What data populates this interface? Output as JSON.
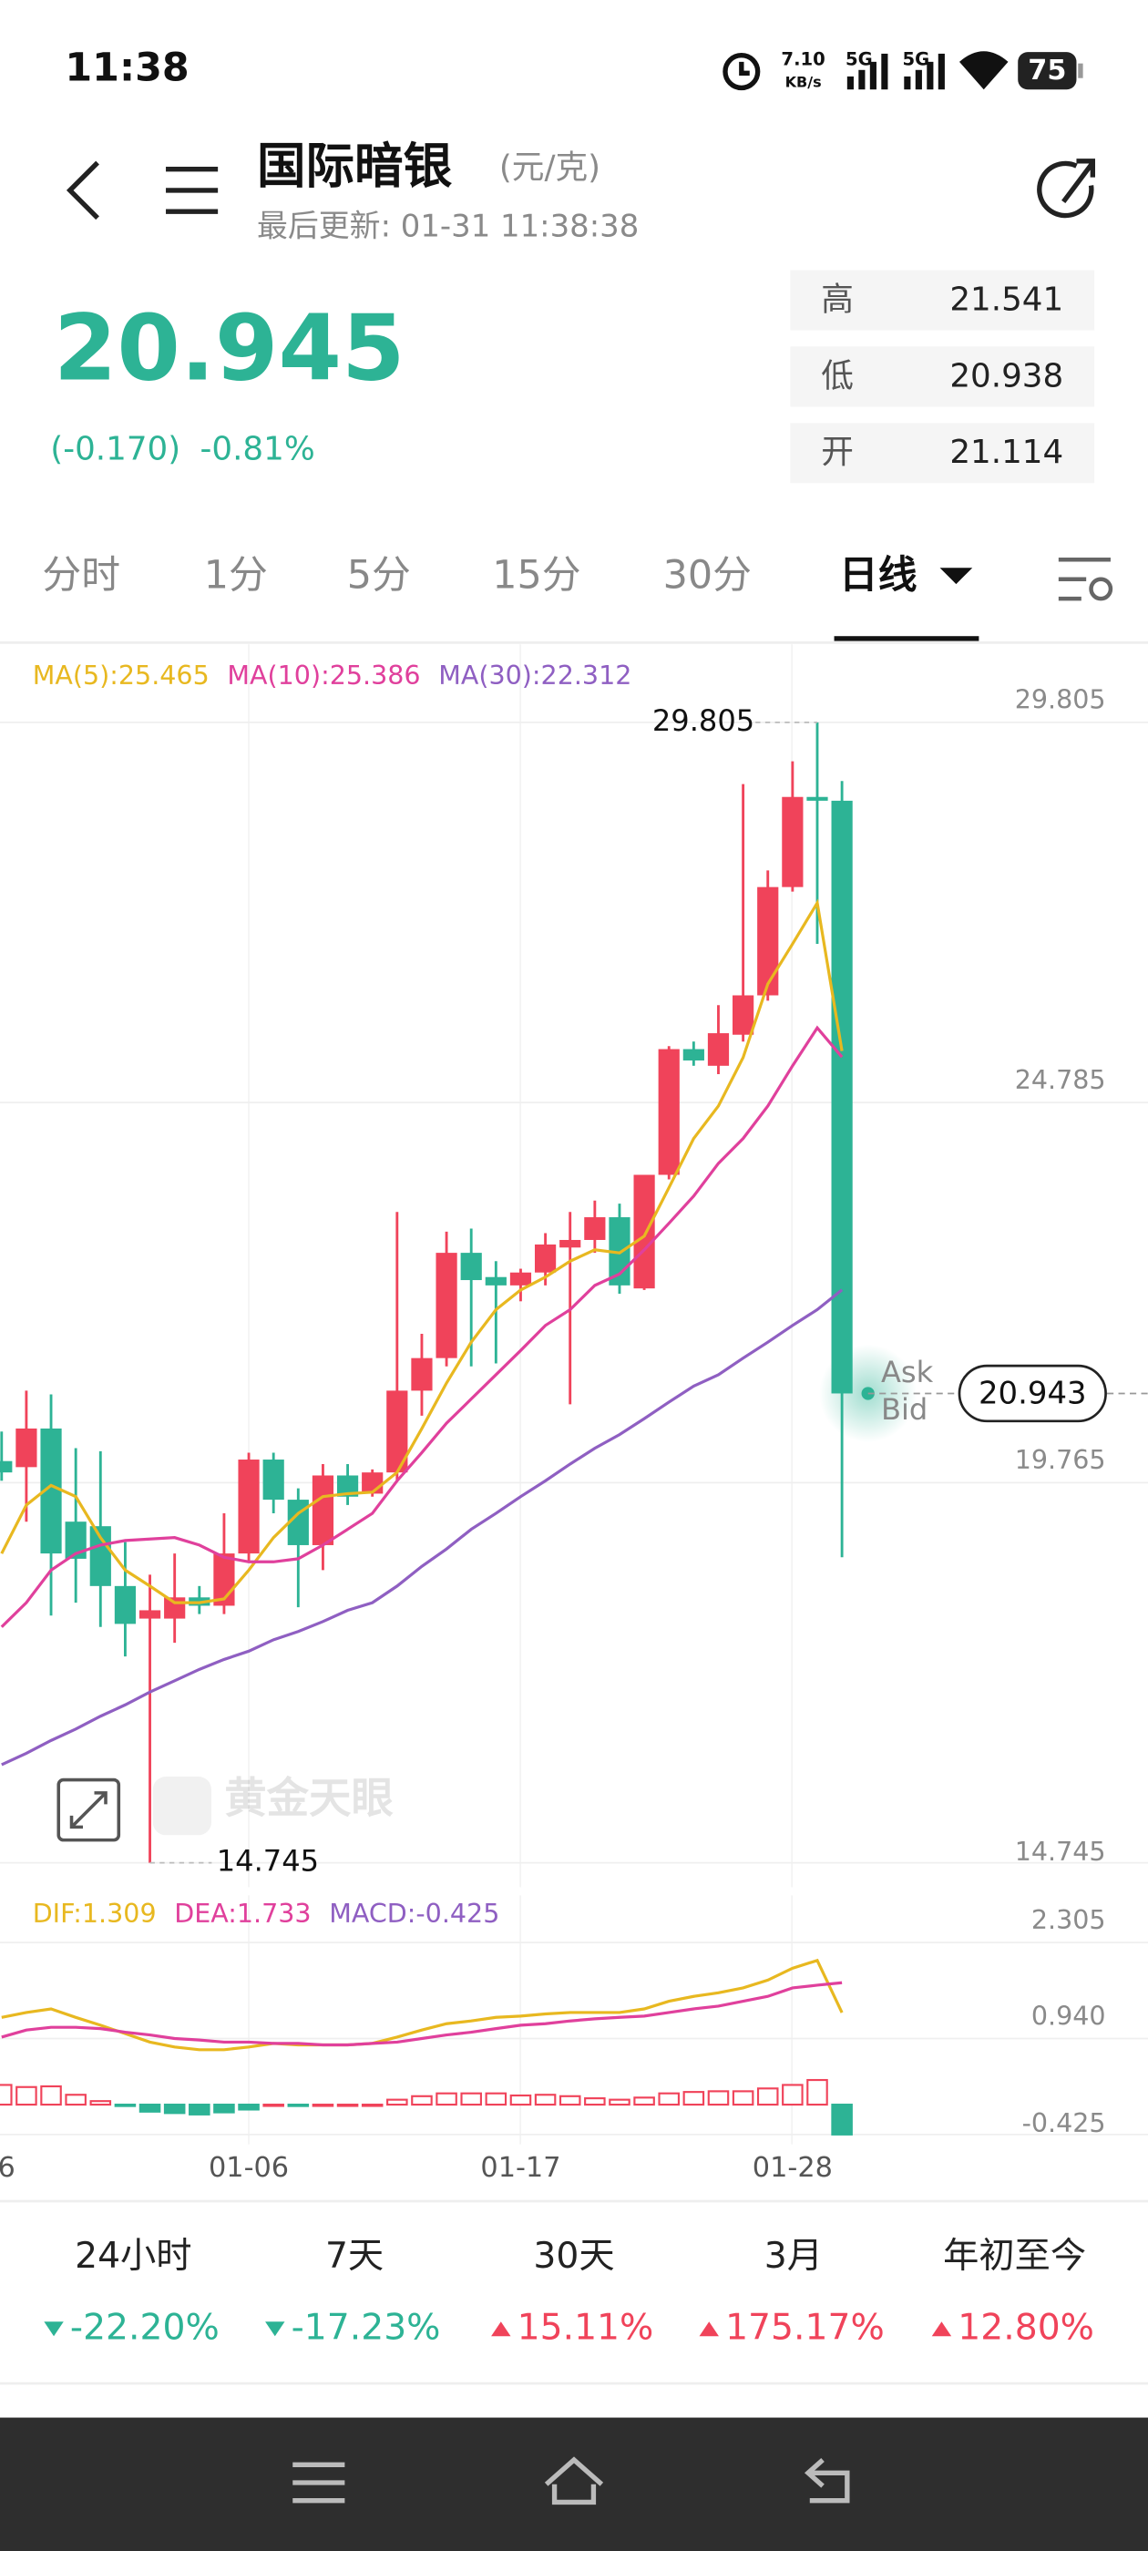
{
  "status_bar": {
    "time": "11:38",
    "net_speed": "7.10",
    "net_unit": "KB/s",
    "net_1": "5G",
    "net_2": "5G",
    "battery": "75"
  },
  "header": {
    "title": "国际暗银",
    "unit": "(元/克)",
    "updated": "最后更新: 01-31 11:38:38"
  },
  "quote": {
    "price": 20.945,
    "change": -0.17,
    "change_label": "(-0.170)",
    "change_pct": -0.81,
    "change_pct_label": "-0.81%",
    "color": "#2db395",
    "stats": [
      {
        "label": "高",
        "value": 21.541
      },
      {
        "label": "低",
        "value": 20.938
      },
      {
        "label": "开",
        "value": 21.114
      }
    ]
  },
  "tabs": {
    "items": [
      "分时",
      "1分",
      "5分",
      "15分",
      "30分",
      "日线"
    ],
    "active": 5
  },
  "chart_data": [
    {
      "type": "candlestick",
      "up_color": "#f0435a",
      "down_color": "#2db395",
      "ylim": [
        14.745,
        29.805
      ],
      "yticks": [
        29.805,
        24.785,
        19.765,
        14.745
      ],
      "grid": true,
      "ohlc": [
        [
          20.05,
          20.44,
          19.79,
          19.9
        ],
        [
          19.97,
          20.98,
          19.25,
          20.48
        ],
        [
          20.48,
          20.93,
          18.01,
          18.83
        ],
        [
          19.25,
          20.22,
          18.18,
          18.76
        ],
        [
          19.19,
          20.18,
          17.86,
          18.4
        ],
        [
          18.4,
          18.98,
          17.47,
          17.9
        ],
        [
          17.97,
          18.55,
          14.745,
          18.08
        ],
        [
          17.97,
          18.83,
          17.65,
          18.25
        ],
        [
          18.25,
          18.4,
          18.03,
          18.14
        ],
        [
          18.14,
          19.36,
          18.03,
          18.83
        ],
        [
          18.83,
          20.16,
          18.72,
          20.07
        ],
        [
          20.07,
          20.16,
          19.36,
          19.54
        ],
        [
          19.54,
          19.69,
          18.12,
          18.94
        ],
        [
          18.94,
          20.01,
          18.61,
          19.86
        ],
        [
          19.86,
          20.01,
          19.47,
          19.58
        ],
        [
          19.62,
          19.94,
          19.58,
          19.9
        ],
        [
          19.9,
          23.34,
          19.79,
          20.98
        ],
        [
          20.98,
          21.73,
          20.65,
          21.41
        ],
        [
          21.41,
          23.08,
          21.3,
          22.8
        ],
        [
          22.8,
          23.12,
          21.3,
          22.44
        ],
        [
          22.48,
          22.69,
          21.34,
          22.37
        ],
        [
          22.37,
          22.59,
          22.16,
          22.54
        ],
        [
          22.54,
          23.06,
          22.37,
          22.91
        ],
        [
          22.87,
          23.34,
          20.8,
          22.97
        ],
        [
          22.97,
          23.49,
          22.8,
          23.27
        ],
        [
          23.27,
          23.45,
          22.26,
          22.37
        ],
        [
          22.33,
          23.83,
          22.31,
          23.83
        ],
        [
          23.83,
          25.53,
          23.77,
          25.49
        ],
        [
          25.49,
          25.59,
          25.27,
          25.34
        ],
        [
          25.27,
          26.07,
          25.16,
          25.7
        ],
        [
          25.68,
          28.99,
          25.59,
          26.2
        ],
        [
          26.2,
          27.85,
          26.13,
          27.63
        ],
        [
          27.63,
          29.29,
          27.57,
          28.82
        ],
        [
          28.82,
          29.805,
          26.88,
          28.77
        ],
        [
          28.77,
          29.03,
          18.78,
          20.943
        ]
      ],
      "series": [
        {
          "legend": "MA(5):25.465",
          "color": "#e8b820",
          "values": [
            18.83,
            19.47,
            19.73,
            19.58,
            19.04,
            18.61,
            18.4,
            18.18,
            18.18,
            18.23,
            18.61,
            19.04,
            19.36,
            19.58,
            19.62,
            19.64,
            19.9,
            20.48,
            21.08,
            21.62,
            22.05,
            22.31,
            22.48,
            22.69,
            22.84,
            22.8,
            23.02,
            23.66,
            24.31,
            24.74,
            25.38,
            26.35,
            26.88,
            27.42,
            25.465
          ]
        },
        {
          "legend": "MA(10):25.386",
          "color": "#e0409c",
          "values": [
            17.86,
            18.18,
            18.61,
            18.83,
            18.94,
            19.0,
            19.02,
            19.04,
            18.94,
            18.78,
            18.72,
            18.72,
            18.76,
            18.94,
            19.15,
            19.36,
            19.79,
            20.16,
            20.55,
            20.87,
            21.19,
            21.51,
            21.84,
            22.05,
            22.37,
            22.52,
            22.84,
            23.19,
            23.55,
            23.98,
            24.31,
            24.74,
            25.27,
            25.77,
            25.386
          ]
        },
        {
          "legend": "MA(30):22.312",
          "color": "#8f5fc2",
          "values": [
            16.04,
            16.19,
            16.36,
            16.51,
            16.68,
            16.83,
            17.0,
            17.15,
            17.3,
            17.43,
            17.54,
            17.69,
            17.8,
            17.93,
            18.08,
            18.18,
            18.4,
            18.66,
            18.89,
            19.15,
            19.36,
            19.58,
            19.79,
            20.01,
            20.22,
            20.4,
            20.61,
            20.83,
            21.04,
            21.19,
            21.41,
            21.62,
            21.84,
            22.05,
            22.312
          ]
        }
      ],
      "max": 29.805,
      "min": 14.745,
      "last_price": 20.943,
      "ask": "Ask",
      "bid": "Bid"
    },
    {
      "type": "macd",
      "categories": [
        "6",
        null,
        null,
        null,
        null,
        null,
        null,
        null,
        null,
        null,
        "01-06",
        null,
        null,
        null,
        null,
        null,
        null,
        null,
        null,
        null,
        null,
        "01-17",
        null,
        null,
        null,
        null,
        null,
        null,
        null,
        null,
        null,
        null,
        "01-28",
        null,
        null
      ],
      "ylim": [
        -0.425,
        2.305
      ],
      "yticks": [
        2.305,
        {
          "value": 0.94,
          "label": "0.940"
        },
        -0.425
      ],
      "grid": true,
      "series": [
        {
          "legend": "DIF:1.309",
          "color": "#e8b820",
          "values": [
            1.24,
            1.31,
            1.36,
            1.24,
            1.13,
            1.01,
            0.89,
            0.82,
            0.78,
            0.78,
            0.82,
            0.87,
            0.85,
            0.85,
            0.85,
            0.87,
            0.96,
            1.06,
            1.15,
            1.19,
            1.24,
            1.26,
            1.29,
            1.31,
            1.31,
            1.31,
            1.36,
            1.47,
            1.54,
            1.59,
            1.66,
            1.77,
            1.94,
            2.05,
            1.309
          ]
        },
        {
          "legend": "DEA:1.733",
          "color": "#e0409c",
          "values": [
            0.96,
            1.06,
            1.1,
            1.1,
            1.08,
            1.03,
            0.99,
            0.94,
            0.92,
            0.89,
            0.89,
            0.87,
            0.87,
            0.85,
            0.85,
            0.87,
            0.89,
            0.94,
            0.99,
            1.03,
            1.08,
            1.13,
            1.15,
            1.19,
            1.22,
            1.24,
            1.26,
            1.31,
            1.36,
            1.4,
            1.47,
            1.54,
            1.66,
            1.7,
            1.733
          ]
        }
      ],
      "histogram": {
        "legend": "MACD:-0.425",
        "color": "#8f5fc2",
        "up_color": "#f0435a",
        "down_color": "#2db395",
        "values": [
          0.28,
          0.25,
          0.26,
          0.14,
          0.05,
          -0.02,
          -0.1,
          -0.12,
          -0.14,
          -0.11,
          -0.07,
          0.0,
          -0.02,
          0.0,
          0.0,
          0.0,
          0.07,
          0.12,
          0.16,
          0.16,
          0.16,
          0.13,
          0.14,
          0.12,
          0.09,
          0.07,
          0.1,
          0.16,
          0.18,
          0.19,
          0.19,
          0.23,
          0.28,
          0.35,
          -0.425
        ]
      }
    }
  ],
  "performance": {
    "labels": [
      "24小时",
      "7天",
      "30天",
      "3月",
      "年初至今"
    ],
    "values": [
      -22.2,
      -17.23,
      15.11,
      175.17,
      12.8
    ],
    "value_labels": [
      "-22.20%",
      "-17.23%",
      "15.11%",
      "175.17%",
      "12.80%"
    ],
    "up_color": "#f0435a",
    "down_color": "#2db395"
  },
  "watermark": "黄金天眼"
}
